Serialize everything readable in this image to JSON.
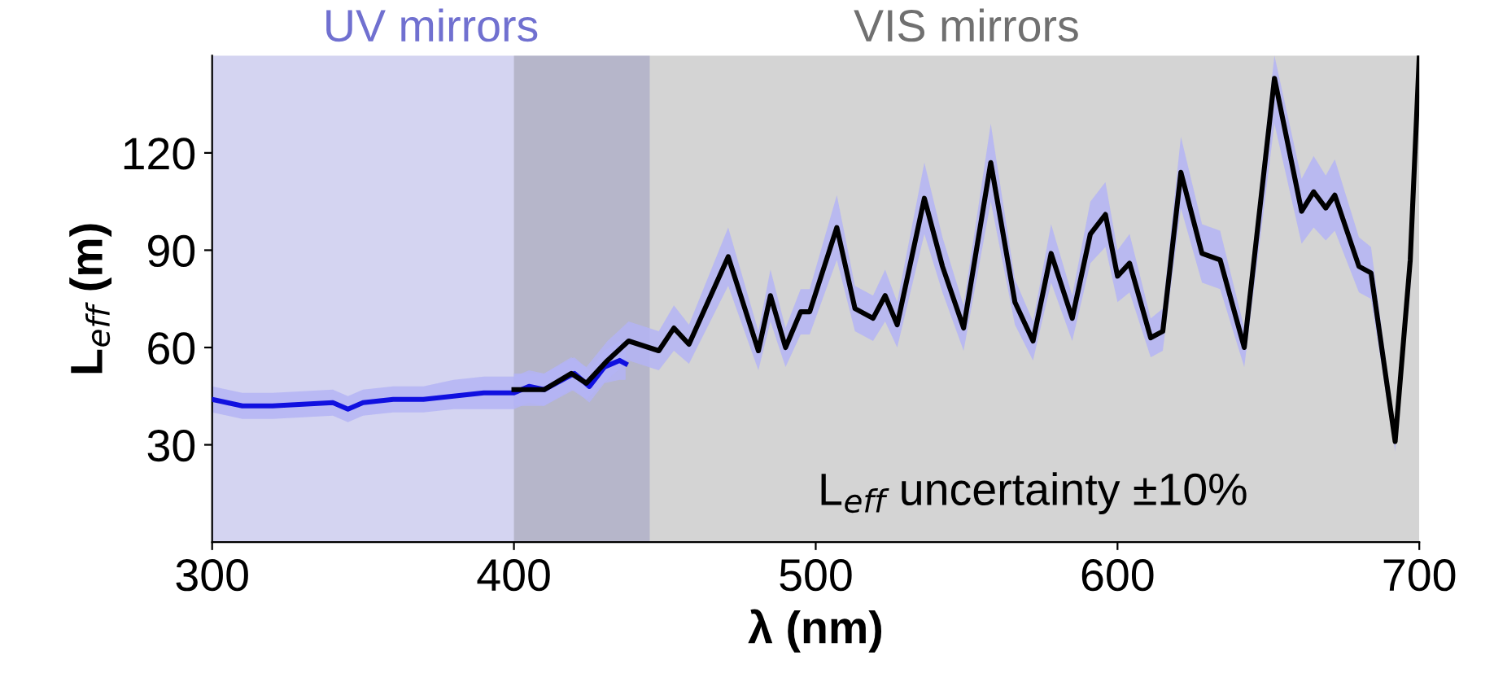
{
  "chart_data": {
    "type": "line",
    "xlabel": "λ (nm)",
    "ylabel": "L$_{eff}$ (m)",
    "xlim": [
      300,
      700
    ],
    "ylim": [
      0,
      150
    ],
    "xticks": [
      300,
      400,
      500,
      600,
      700
    ],
    "yticks": [
      30,
      60,
      90,
      120
    ],
    "grid": false,
    "marker": "none",
    "line_style": "solid",
    "annotations": [
      "L$_{eff}$ uncertainty ±10%"
    ],
    "bands": [
      {
        "axis": "x",
        "from": 300,
        "to": 445,
        "label": "UV mirrors",
        "color": "#7070d0"
      },
      {
        "axis": "x",
        "from": 400,
        "to": 700,
        "label": "VIS mirrors",
        "color": "#707070"
      }
    ],
    "series": [
      {
        "color": "#1010e0",
        "x": [
          300,
          310,
          320,
          340,
          345,
          350,
          360,
          370,
          380,
          390,
          400,
          405,
          410,
          420,
          425,
          430,
          435,
          437
        ],
        "values": [
          44,
          42,
          42,
          43,
          41,
          43,
          44,
          44,
          45,
          46,
          46,
          48,
          47,
          52,
          48,
          54,
          56,
          55
        ],
        "lower": [
          40,
          38,
          38,
          39,
          37,
          39,
          40,
          40,
          41,
          41,
          41,
          43,
          42,
          47,
          43,
          49,
          50,
          50
        ],
        "upper": [
          48,
          46,
          46,
          47,
          45,
          47,
          48,
          48,
          50,
          51,
          51,
          53,
          52,
          57,
          53,
          59,
          62,
          61
        ]
      },
      {
        "color": "#000000",
        "x": [
          400,
          410,
          419,
          424,
          431,
          438,
          448,
          453,
          458,
          471,
          481,
          485,
          490,
          495,
          498,
          507,
          513,
          519,
          523,
          527,
          536,
          542,
          549,
          558,
          566,
          572,
          578,
          585,
          591,
          596,
          600,
          604,
          611,
          615,
          621,
          628,
          634,
          642,
          652,
          661,
          665,
          669,
          672,
          680,
          684,
          692,
          697,
          700
        ],
        "values": [
          47,
          47,
          52,
          49,
          56,
          62,
          59,
          66,
          61,
          88,
          59,
          76,
          60,
          71,
          71,
          97,
          72,
          69,
          76,
          67,
          106,
          85,
          66,
          117,
          74,
          62,
          89,
          69,
          95,
          101,
          82,
          86,
          63,
          65,
          114,
          89,
          87,
          60,
          143,
          102,
          108,
          103,
          107,
          85,
          83,
          31,
          87,
          150
        ],
        "lower": [
          42,
          42,
          47,
          44,
          50,
          56,
          53,
          59,
          55,
          79,
          53,
          68,
          54,
          64,
          64,
          87,
          65,
          62,
          68,
          60,
          95,
          77,
          59,
          105,
          67,
          56,
          80,
          62,
          86,
          91,
          74,
          77,
          57,
          59,
          103,
          80,
          78,
          54,
          129,
          92,
          97,
          93,
          96,
          77,
          75,
          28,
          78,
          150
        ],
        "upper": [
          52,
          52,
          57,
          54,
          62,
          68,
          65,
          73,
          67,
          97,
          65,
          84,
          66,
          78,
          78,
          107,
          79,
          76,
          84,
          74,
          117,
          94,
          73,
          129,
          81,
          68,
          98,
          76,
          105,
          111,
          90,
          95,
          69,
          72,
          125,
          98,
          96,
          66,
          150,
          112,
          119,
          113,
          118,
          94,
          91,
          34,
          96,
          150
        ]
      }
    ]
  }
}
